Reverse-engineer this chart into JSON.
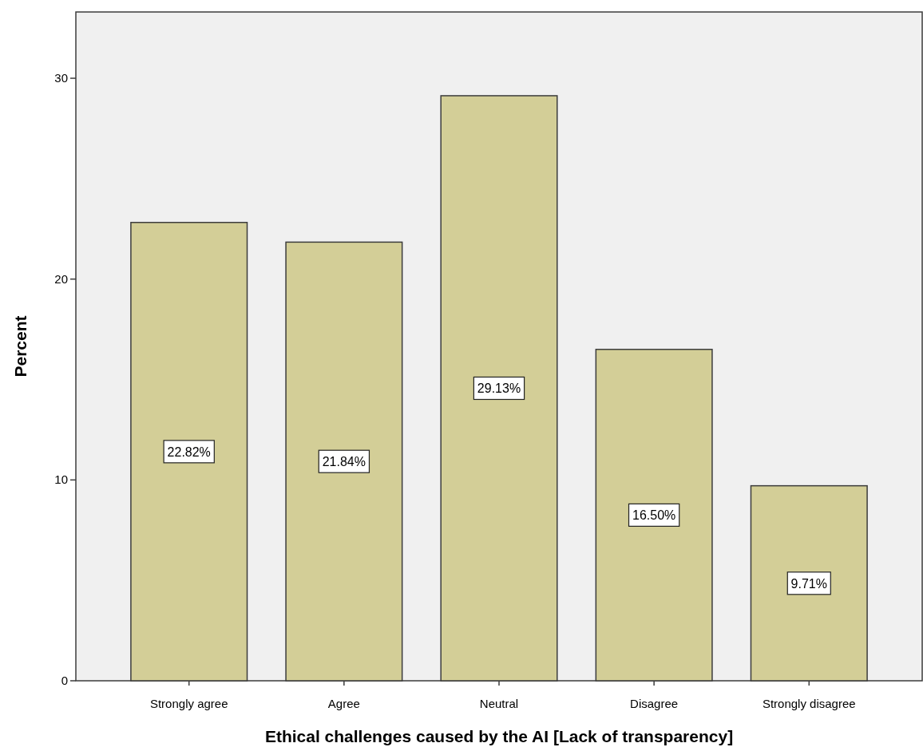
{
  "chart_data": {
    "type": "bar",
    "xlabel": "Ethical challenges caused by the AI [Lack of transparency]",
    "ylabel": "Percent",
    "categories": [
      "Strongly agree",
      "Agree",
      "Neutral",
      "Disagree",
      "Strongly disagree"
    ],
    "values": [
      22.82,
      21.84,
      29.13,
      16.5,
      9.71
    ],
    "value_labels": [
      "22.82%",
      "21.84%",
      "29.13%",
      "16.50%",
      "9.71%"
    ],
    "color": "#d3ce97",
    "ylim": [
      0,
      33.3
    ],
    "yticks": [
      0,
      10,
      20,
      30
    ],
    "grid": false
  }
}
